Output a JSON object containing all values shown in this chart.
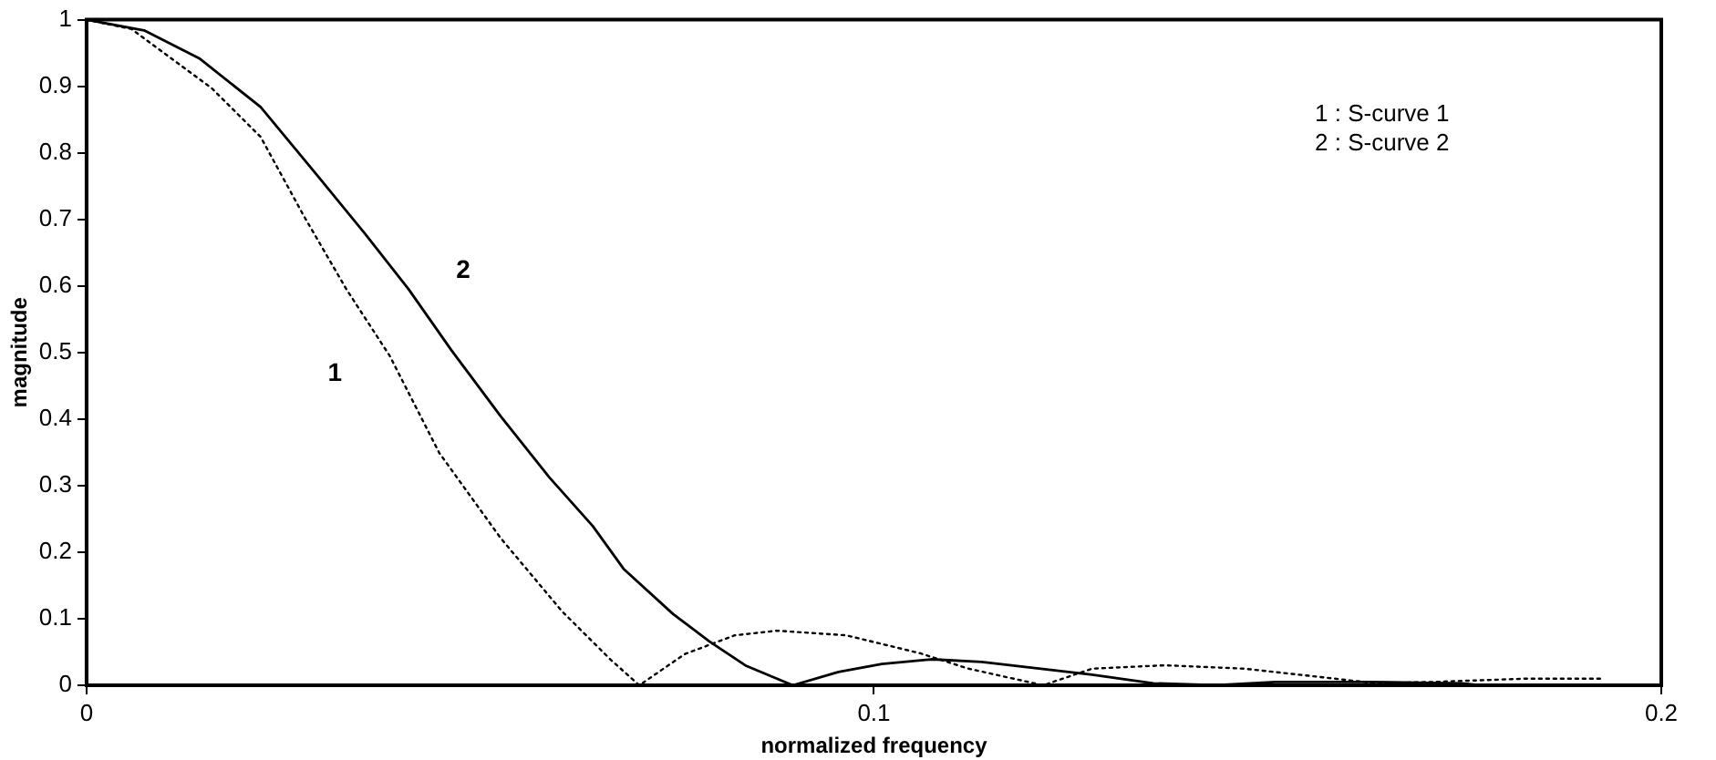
{
  "chart_data": {
    "type": "line",
    "xlabel": "normalized frequency",
    "ylabel": "magnitude",
    "xlim": [
      0,
      0.2
    ],
    "xticks": [
      0,
      0.1,
      0.2
    ],
    "ylim": [
      0,
      1
    ],
    "yticks": [
      0,
      0.1,
      0.2,
      0.3,
      0.4,
      0.5,
      0.6,
      0.7,
      0.8,
      0.9,
      1
    ],
    "grid": false,
    "legend": false,
    "marker": "none",
    "series": [
      {
        "color": "#000000",
        "line_style": "dotted",
        "x": [
          0,
          0.0057,
          0.0159,
          0.0221,
          0.0276,
          0.033,
          0.0385,
          0.0448,
          0.0526,
          0.0604,
          0.0666,
          0.0702,
          0.076,
          0.0823,
          0.0877,
          0.094,
          0.0965,
          0.1059,
          0.112,
          0.1215,
          0.1277,
          0.137,
          0.147,
          0.157,
          0.1637,
          0.171,
          0.183,
          0.1926
        ],
        "values": [
          1,
          0.986,
          0.897,
          0.824,
          0.705,
          0.595,
          0.495,
          0.349,
          0.221,
          0.111,
          0.038,
          0,
          0.047,
          0.075,
          0.082,
          0.077,
          0.075,
          0.048,
          0.025,
          0,
          0.025,
          0.03,
          0.025,
          0.012,
          0.003,
          0.005,
          0.01,
          0.01
        ]
      },
      {
        "color": "#000000",
        "line_style": "solid",
        "x": [
          0,
          0.0073,
          0.0143,
          0.0221,
          0.0291,
          0.0354,
          0.0409,
          0.0463,
          0.0526,
          0.0588,
          0.0643,
          0.0682,
          0.0745,
          0.0791,
          0.0838,
          0.0897,
          0.0955,
          0.101,
          0.1074,
          0.1137,
          0.1277,
          0.1355,
          0.1434,
          0.151,
          0.163,
          0.1747,
          0.177,
          0.19
        ],
        "values": [
          1,
          0.984,
          0.942,
          0.869,
          0.769,
          0.678,
          0.595,
          0.504,
          0.404,
          0.312,
          0.239,
          0.175,
          0.107,
          0.066,
          0.029,
          0,
          0.02,
          0.032,
          0.039,
          0.035,
          0.016,
          0.003,
          0,
          0.005,
          0.005,
          0.003,
          0,
          0
        ]
      }
    ],
    "annotations": [
      "1",
      "2",
      "1 : S-curve 1",
      "2 : S-curve 2"
    ]
  }
}
